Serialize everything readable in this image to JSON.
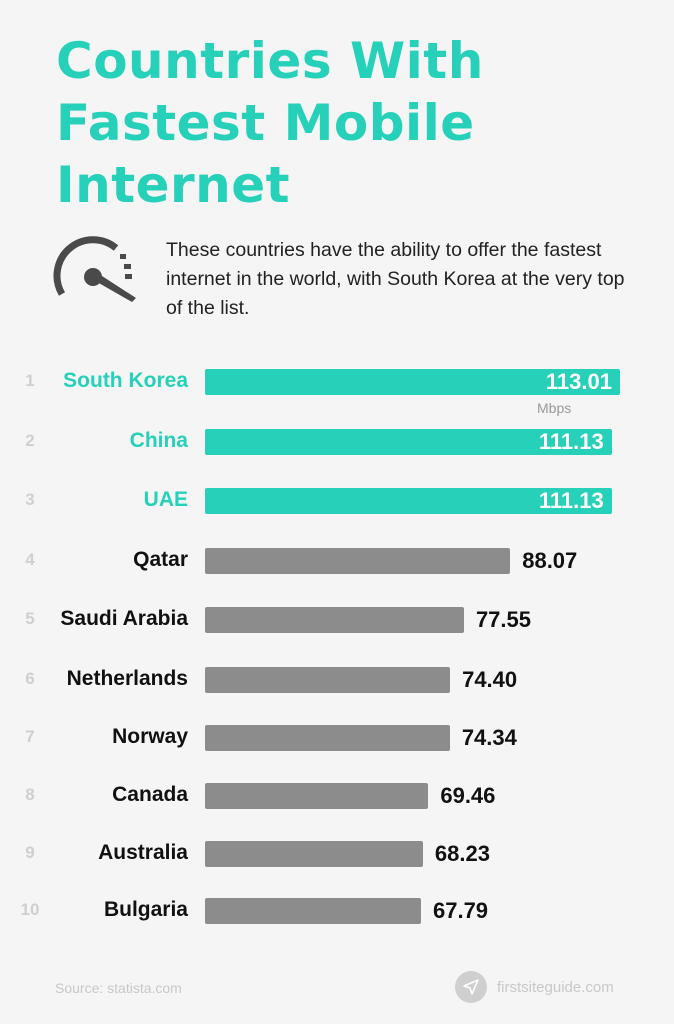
{
  "header": {
    "title": "Countries With Fastest Mobile Internet",
    "intro": "These countries have the ability to offer the fastest internet in the world, with South Korea at the very top of the list.",
    "icon": "speedometer-icon"
  },
  "chart_data": {
    "type": "bar",
    "orientation": "horizontal",
    "unit": "Mbps",
    "categories": [
      "South Korea",
      "China",
      "UAE",
      "Qatar",
      "Saudi Arabia",
      "Netherlands",
      "Norway",
      "Canada",
      "Australia",
      "Bulgaria"
    ],
    "ranks": [
      "1",
      "2",
      "3",
      "4",
      "5",
      "6",
      "7",
      "8",
      "9",
      "10"
    ],
    "values": [
      113.01,
      111.13,
      111.13,
      88.07,
      77.55,
      74.4,
      74.34,
      69.46,
      68.23,
      67.79
    ],
    "labels": [
      "113.01",
      "111.13",
      "111.13",
      "88.07",
      "77.55",
      "74.40",
      "74.34",
      "69.46",
      "68.23",
      "67.79"
    ],
    "highlight_count": 3,
    "colors": {
      "highlight": "#26d0b9",
      "default": "#8c8c8c"
    },
    "grid": false
  },
  "footer": {
    "source": "Source: statista.com",
    "brand": "firstsiteguide.com",
    "brand_icon": "paper-plane-icon"
  }
}
